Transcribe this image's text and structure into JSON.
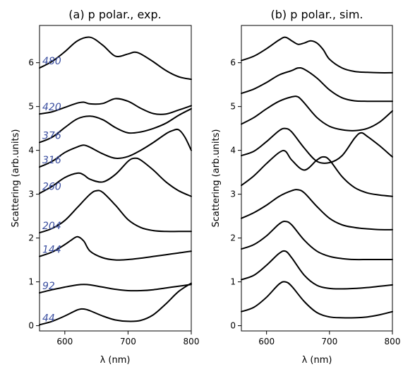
{
  "chart_data": [
    {
      "type": "line",
      "title": "(a) p polar., exp.",
      "xlabel": "λ (nm)",
      "ylabel": "Scattering (arb.units)",
      "xlim": [
        560,
        800
      ],
      "ylim": [
        -0.12,
        6.85
      ],
      "xticks": [
        600,
        700,
        800
      ],
      "yticks": [
        0,
        1,
        2,
        3,
        4,
        5,
        6
      ],
      "series": [
        {
          "name": "44",
          "x": [
            560,
            580,
            600,
            620,
            630,
            640,
            660,
            680,
            700,
            720,
            740,
            760,
            780,
            800
          ],
          "y": [
            0.02,
            0.1,
            0.22,
            0.36,
            0.38,
            0.34,
            0.22,
            0.13,
            0.1,
            0.12,
            0.25,
            0.5,
            0.78,
            0.97
          ]
        },
        {
          "name": "92",
          "x": [
            560,
            580,
            600,
            620,
            630,
            640,
            660,
            680,
            700,
            720,
            740,
            760,
            780,
            800
          ],
          "y": [
            0.75,
            0.82,
            0.88,
            0.93,
            0.94,
            0.93,
            0.88,
            0.83,
            0.8,
            0.8,
            0.82,
            0.86,
            0.9,
            0.94
          ]
        },
        {
          "name": "144",
          "x": [
            560,
            580,
            600,
            610,
            620,
            630,
            640,
            660,
            680,
            700,
            720,
            740,
            760,
            780,
            800
          ],
          "y": [
            1.58,
            1.68,
            1.85,
            1.95,
            2.03,
            1.93,
            1.7,
            1.55,
            1.5,
            1.51,
            1.54,
            1.58,
            1.62,
            1.66,
            1.7
          ]
        },
        {
          "name": "204",
          "x": [
            560,
            580,
            600,
            620,
            640,
            650,
            660,
            680,
            700,
            720,
            740,
            760,
            780,
            800
          ],
          "y": [
            2.12,
            2.22,
            2.4,
            2.7,
            3.0,
            3.08,
            3.04,
            2.75,
            2.42,
            2.24,
            2.17,
            2.15,
            2.15,
            2.15
          ]
        },
        {
          "name": "260",
          "x": [
            560,
            580,
            600,
            620,
            630,
            640,
            660,
            680,
            700,
            710,
            720,
            740,
            760,
            780,
            800
          ],
          "y": [
            3.02,
            3.18,
            3.38,
            3.48,
            3.44,
            3.34,
            3.28,
            3.45,
            3.75,
            3.82,
            3.78,
            3.55,
            3.28,
            3.08,
            2.95
          ]
        },
        {
          "name": "316",
          "x": [
            560,
            580,
            600,
            620,
            630,
            640,
            660,
            680,
            700,
            720,
            740,
            760,
            770,
            780,
            790,
            800
          ],
          "y": [
            3.62,
            3.75,
            3.95,
            4.08,
            4.12,
            4.07,
            3.92,
            3.82,
            3.86,
            4.0,
            4.18,
            4.38,
            4.45,
            4.47,
            4.3,
            4.0
          ]
        },
        {
          "name": "376",
          "x": [
            560,
            580,
            600,
            620,
            640,
            660,
            680,
            700,
            720,
            740,
            760,
            780,
            800
          ],
          "y": [
            4.18,
            4.3,
            4.52,
            4.72,
            4.78,
            4.7,
            4.52,
            4.4,
            4.42,
            4.5,
            4.62,
            4.8,
            4.95
          ]
        },
        {
          "name": "420",
          "x": [
            560,
            580,
            600,
            620,
            630,
            640,
            660,
            680,
            700,
            720,
            740,
            760,
            780,
            800
          ],
          "y": [
            4.83,
            4.88,
            4.98,
            5.08,
            5.1,
            5.06,
            5.07,
            5.18,
            5.12,
            4.96,
            4.84,
            4.83,
            4.92,
            5.02
          ]
        },
        {
          "name": "480",
          "x": [
            560,
            580,
            600,
            620,
            640,
            660,
            680,
            700,
            710,
            720,
            740,
            760,
            780,
            800
          ],
          "y": [
            5.88,
            6.03,
            6.25,
            6.5,
            6.58,
            6.4,
            6.15,
            6.2,
            6.24,
            6.2,
            6.02,
            5.82,
            5.68,
            5.62
          ]
        }
      ]
    },
    {
      "type": "line",
      "title": "(b) p polar., sim.",
      "xlabel": "λ (nm)",
      "ylabel": "Scattering (arb.units)",
      "xlim": [
        560,
        800
      ],
      "ylim": [
        -0.12,
        6.85
      ],
      "xticks": [
        600,
        700,
        800
      ],
      "yticks": [
        0,
        1,
        2,
        3,
        4,
        5,
        6
      ],
      "series": [
        {
          "x": [
            560,
            580,
            600,
            620,
            630,
            640,
            660,
            680,
            700,
            720,
            740,
            760,
            780,
            800
          ],
          "y": [
            0.32,
            0.42,
            0.65,
            0.95,
            1.0,
            0.9,
            0.55,
            0.3,
            0.2,
            0.18,
            0.18,
            0.2,
            0.25,
            0.32
          ]
        },
        {
          "x": [
            560,
            580,
            600,
            620,
            630,
            640,
            660,
            680,
            700,
            720,
            740,
            760,
            780,
            800
          ],
          "y": [
            1.05,
            1.15,
            1.38,
            1.65,
            1.7,
            1.55,
            1.15,
            0.92,
            0.85,
            0.84,
            0.85,
            0.87,
            0.9,
            0.93
          ]
        },
        {
          "x": [
            560,
            580,
            600,
            620,
            630,
            640,
            660,
            680,
            700,
            720,
            740,
            760,
            780,
            800
          ],
          "y": [
            1.75,
            1.85,
            2.05,
            2.32,
            2.38,
            2.3,
            1.95,
            1.7,
            1.58,
            1.53,
            1.51,
            1.51,
            1.51,
            1.51
          ]
        },
        {
          "x": [
            560,
            580,
            600,
            620,
            640,
            650,
            660,
            680,
            700,
            720,
            740,
            760,
            780,
            800
          ],
          "y": [
            2.45,
            2.58,
            2.75,
            2.95,
            3.08,
            3.1,
            3.03,
            2.72,
            2.45,
            2.3,
            2.24,
            2.21,
            2.19,
            2.19
          ]
        },
        {
          "x": [
            560,
            580,
            600,
            620,
            630,
            640,
            660,
            680,
            690,
            700,
            720,
            740,
            760,
            780,
            800
          ],
          "y": [
            3.2,
            3.42,
            3.7,
            3.95,
            3.98,
            3.78,
            3.55,
            3.78,
            3.85,
            3.78,
            3.4,
            3.15,
            3.03,
            2.98,
            2.95
          ]
        },
        {
          "x": [
            560,
            580,
            600,
            620,
            630,
            640,
            660,
            680,
            700,
            720,
            740,
            750,
            760,
            780,
            800
          ],
          "y": [
            3.88,
            3.98,
            4.2,
            4.45,
            4.5,
            4.42,
            4.05,
            3.75,
            3.72,
            3.88,
            4.28,
            4.4,
            4.32,
            4.1,
            3.85
          ]
        },
        {
          "x": [
            560,
            580,
            600,
            620,
            640,
            650,
            660,
            680,
            700,
            720,
            740,
            760,
            780,
            800
          ],
          "y": [
            4.6,
            4.75,
            4.95,
            5.12,
            5.22,
            5.22,
            5.08,
            4.75,
            4.55,
            4.47,
            4.45,
            4.5,
            4.65,
            4.9
          ]
        },
        {
          "x": [
            560,
            580,
            600,
            620,
            640,
            650,
            660,
            680,
            700,
            720,
            740,
            760,
            780,
            800
          ],
          "y": [
            5.3,
            5.4,
            5.55,
            5.72,
            5.82,
            5.88,
            5.85,
            5.65,
            5.38,
            5.2,
            5.13,
            5.12,
            5.12,
            5.12
          ]
        },
        {
          "x": [
            560,
            580,
            600,
            620,
            630,
            640,
            650,
            660,
            670,
            680,
            690,
            700,
            720,
            740,
            760,
            780,
            800
          ],
          "y": [
            6.05,
            6.15,
            6.32,
            6.52,
            6.58,
            6.5,
            6.42,
            6.45,
            6.5,
            6.45,
            6.3,
            6.08,
            5.88,
            5.8,
            5.78,
            5.77,
            5.77
          ]
        }
      ]
    }
  ]
}
